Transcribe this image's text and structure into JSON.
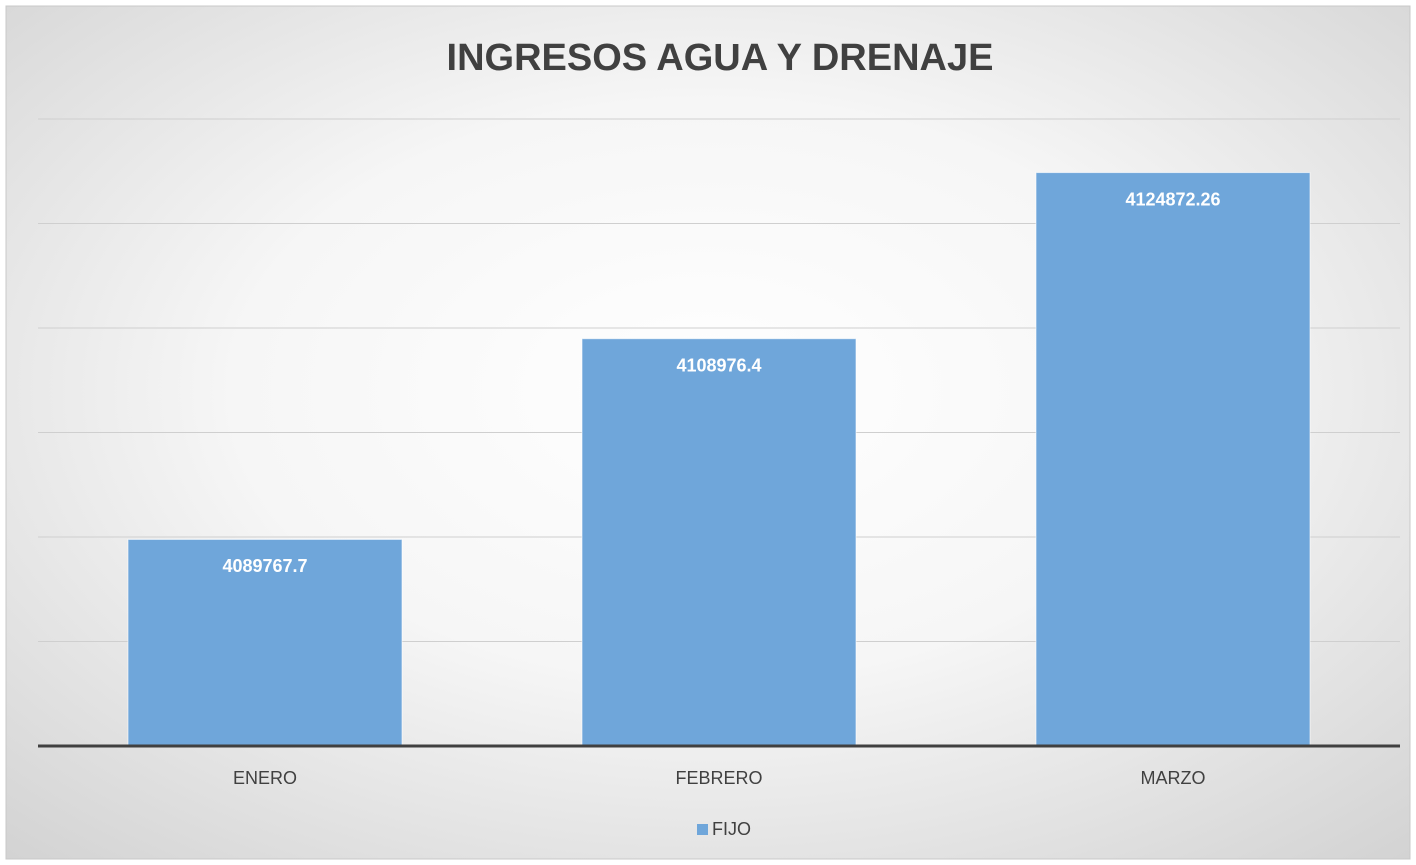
{
  "chart_data": {
    "type": "bar",
    "title": "INGRESOS AGUA Y DRENAJE",
    "categories": [
      "ENERO",
      "FEBRERO",
      "MARZO"
    ],
    "series": [
      {
        "name": "FIJO",
        "color": "#6fa6da",
        "values": [
          4089767.7,
          4108976.4,
          4124872.26
        ]
      }
    ],
    "ylim": [
      4070000,
      4130000
    ],
    "yticks": [
      4070000,
      4080000,
      4090000,
      4100000,
      4110000,
      4120000,
      4130000
    ],
    "grid": true,
    "legend": "bottom"
  }
}
